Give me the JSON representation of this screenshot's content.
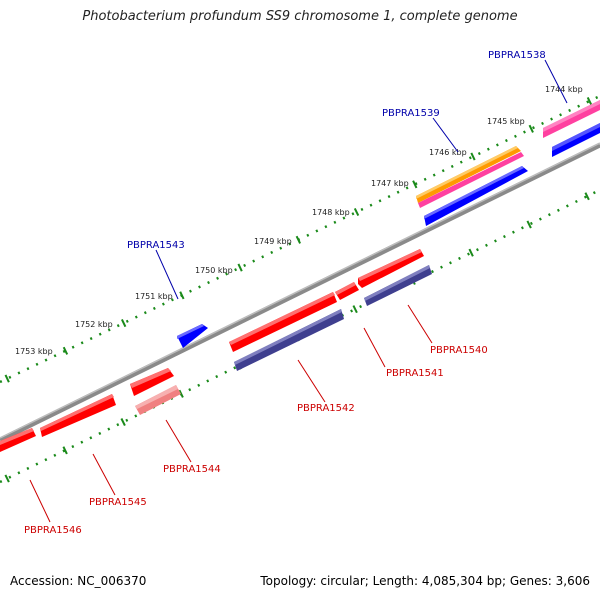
{
  "title": "Photobacterium profundum SS9 chromosome 1, complete genome",
  "footer": {
    "accession": "Accession: NC_006370",
    "stats": "Topology: circular; Length: 4,085,304 bp; Genes: 3,606"
  },
  "colors": {
    "forward_label": "#0000aa",
    "reverse_label": "#cc0000",
    "red": "#ff0000",
    "blue": "#0000ff",
    "navy": "#3f3f8f",
    "pink": "#ff40a0",
    "orange": "#ff9900",
    "light_red": "#f08080",
    "ruler": "#1a8a1a",
    "backbone": "#808080"
  },
  "kbp_ticks": [
    "1744 kbp",
    "1745 kbp",
    "1746 kbp",
    "1747 kbp",
    "1748 kbp",
    "1749 kbp",
    "1750 kbp",
    "1751 kbp",
    "1752 kbp",
    "1753 kbp"
  ],
  "genes_top": [
    "PBPRA1538",
    "PBPRA1539",
    "PBPRA1543"
  ],
  "genes_bottom": [
    "PBPRA1540",
    "PBPRA1541",
    "PBPRA1542",
    "PBPRA1544",
    "PBPRA1545",
    "PBPRA1546"
  ]
}
